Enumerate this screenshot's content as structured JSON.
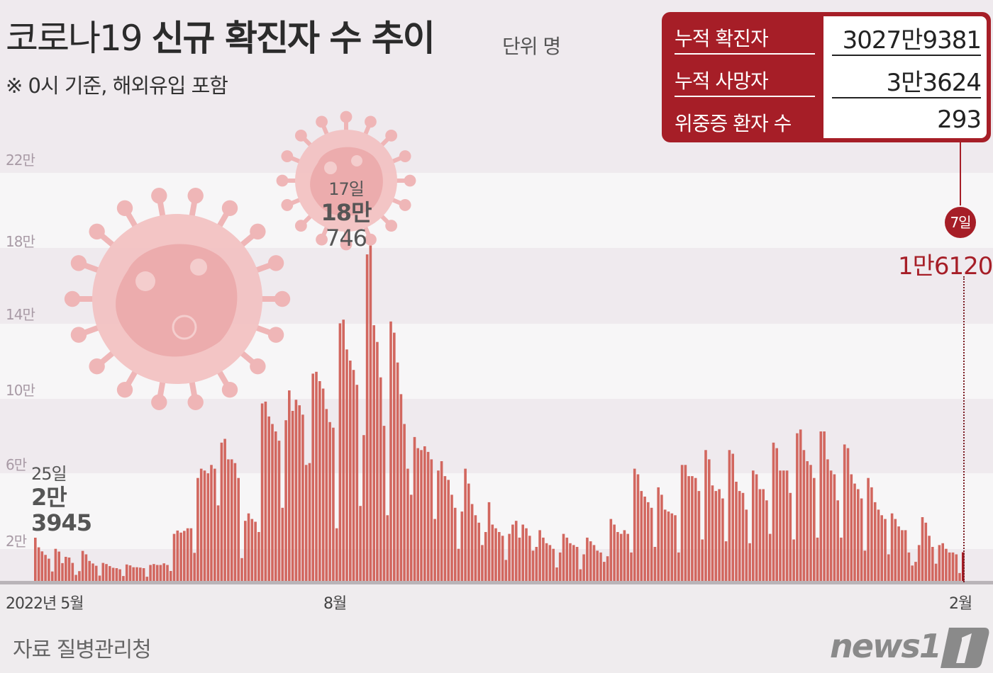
{
  "header": {
    "title_light": "코로나19",
    "title_bold": "신규 확진자 수 추이",
    "unit": "단위 명",
    "note": "※ 0시 기준, 해외유입 포함"
  },
  "stats_box": {
    "rows": [
      {
        "label": "누적 확진자",
        "value": "3027만9381"
      },
      {
        "label": "누적 사망자",
        "value": "3만3624"
      },
      {
        "label": "위중증 환자 수",
        "value": "293"
      }
    ]
  },
  "annotations": {
    "start": {
      "day": "25일",
      "value_line1": "2만",
      "value_line2": "3945"
    },
    "peak": {
      "day": "17일",
      "value_line1": "18만",
      "value_line2": "746"
    },
    "latest": {
      "day": "7일",
      "value": "1만6120"
    }
  },
  "footer": {
    "source": "자료 질병관리청",
    "logo": "news1"
  },
  "colors": {
    "bar": "#d2675f",
    "bar_latest": "#a61e27",
    "accent": "#a61e27",
    "band_dark": "#efeaee",
    "band_light": "#f7f6f7"
  },
  "chart_data": {
    "type": "bar",
    "title": "코로나19 신규 확진자 수 추이",
    "subtitle": "※ 0시 기준, 해외유입 포함",
    "unit": "명",
    "xlabel": "",
    "ylabel": "",
    "x_tick_labels": [
      "2022년 5월",
      "8월",
      "2월"
    ],
    "y_tick_labels": [
      "2만",
      "6만",
      "10만",
      "14만",
      "18만",
      "22만"
    ],
    "y_ticks": [
      20000,
      60000,
      100000,
      140000,
      180000,
      220000
    ],
    "ylim": [
      0,
      220000
    ],
    "grid": "alternating horizontal bands",
    "x_start": "2022-05-25",
    "x_end": "2023-02-07",
    "labeled_points": [
      {
        "date": "2022-05-25",
        "value": 23945
      },
      {
        "date": "2022-08-17",
        "value": 180746
      },
      {
        "date": "2023-02-07",
        "value": 16120
      }
    ],
    "values": [
      23945,
      18800,
      16600,
      14700,
      12700,
      5800,
      18000,
      16500,
      10300,
      13700,
      13300,
      10400,
      4000,
      6000,
      16900,
      15000,
      11500,
      10100,
      8900,
      3600,
      10400,
      9800,
      8700,
      7800,
      7600,
      7000,
      3400,
      9600,
      9100,
      8100,
      8100,
      7900,
      7600,
      3000,
      9300,
      9800,
      9300,
      9300,
      10200,
      9300,
      6100,
      26000,
      27800,
      26700,
      27600,
      29000,
      29000,
      15800,
      56000,
      61000,
      60000,
      58500,
      63000,
      61000,
      41300,
      75000,
      77000,
      66000,
      66000,
      64000,
      56000,
      13000,
      33000,
      37000,
      34000,
      32500,
      27000,
      96000,
      97000,
      89000,
      85000,
      81000,
      76000,
      40000,
      87000,
      103000,
      92000,
      98000,
      95000,
      90000,
      63000,
      64000,
      112000,
      113000,
      108000,
      104000,
      93000,
      86000,
      83000,
      29000,
      139000,
      141000,
      125000,
      119000,
      114000,
      106000,
      41000,
      79000,
      176000,
      180746,
      138000,
      129000,
      110000,
      84000,
      36000,
      140000,
      134000,
      118000,
      101000,
      85000,
      61000,
      47000,
      78000,
      72000,
      71000,
      73000,
      70000,
      66000,
      34000,
      60000,
      65000,
      57000,
      55000,
      47000,
      40000,
      18000,
      38000,
      61000,
      53000,
      42000,
      36000,
      32000,
      20000,
      27000,
      43000,
      31000,
      29000,
      27000,
      25000,
      12000,
      26000,
      31000,
      33000,
      24000,
      31000,
      29000,
      25000,
      17000,
      19000,
      28000,
      24000,
      21000,
      20000,
      18000,
      8000,
      16000,
      26000,
      24000,
      21000,
      20000,
      19000,
      7000,
      15000,
      24000,
      22000,
      20000,
      17000,
      16000,
      11000,
      14000,
      34000,
      31000,
      27000,
      26000,
      28000,
      26000,
      16000,
      61000,
      58000,
      49000,
      46000,
      43000,
      40000,
      19000,
      51000,
      47000,
      39000,
      38000,
      37000,
      36000,
      16000,
      63000,
      63000,
      57000,
      57000,
      56000,
      49000,
      23000,
      71000,
      66000,
      52000,
      49000,
      50000,
      45000,
      22000,
      71000,
      69000,
      54000,
      49000,
      48000,
      39000,
      21000,
      60000,
      58000,
      50000,
      50000,
      44000,
      26000,
      75000,
      72000,
      60000,
      60000,
      60000,
      48000,
      23000,
      80000,
      82000,
      71000,
      65000,
      63000,
      56000,
      24000,
      81000,
      81000,
      66000,
      60000,
      58000,
      44000,
      24000,
      74000,
      72000,
      58000,
      53000,
      50000,
      45000,
      17000,
      56000,
      51000,
      43000,
      39000,
      36000,
      34000,
      15000,
      37000,
      34000,
      30000,
      28000,
      28000,
      16000,
      9000,
      11000,
      20000,
      35000,
      32000,
      25000,
      19000,
      10000,
      20000,
      21000,
      18000,
      16000,
      16000,
      15000,
      5000,
      16120
    ]
  }
}
